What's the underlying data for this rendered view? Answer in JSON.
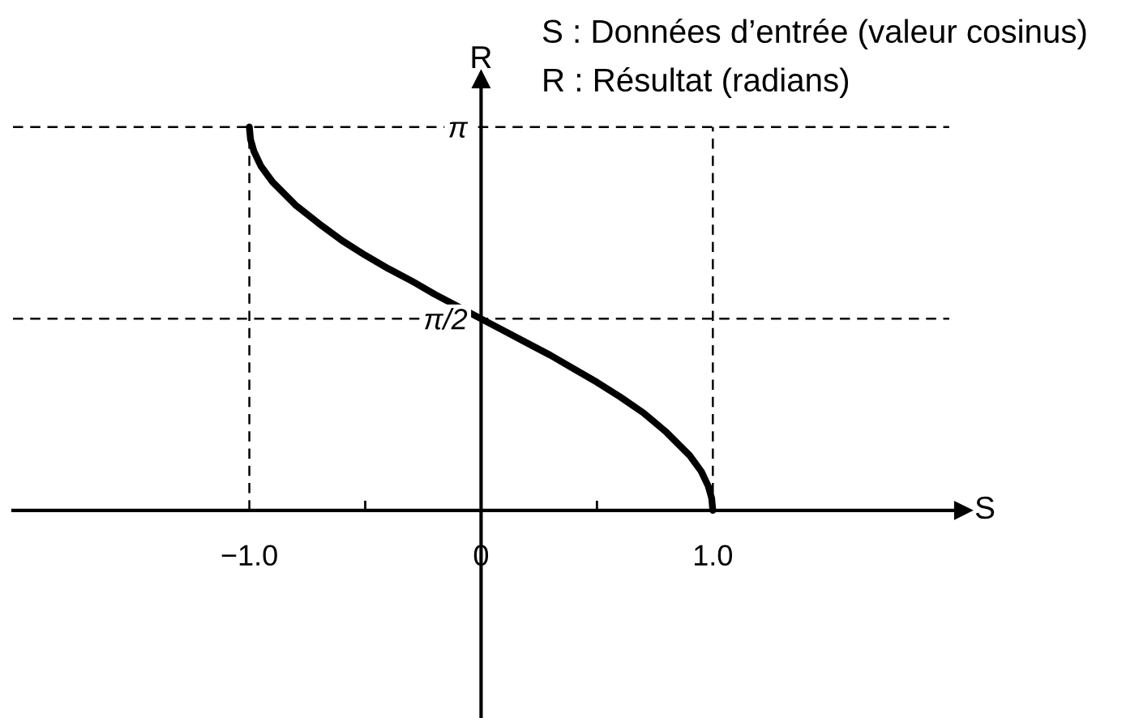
{
  "chart_data": {
    "type": "line",
    "xlabel": "S",
    "ylabel": "R",
    "annotations": [
      "S : Données d’entrée (valeur cosinus)",
      "R : Résultat (radians)"
    ],
    "xlim": [
      -2.02,
      2.08
    ],
    "ylim": [
      -1.7,
      3.53
    ],
    "xticks": [
      {
        "value": -1.0,
        "label": "−1.0"
      },
      {
        "value": -0.5,
        "label": null
      },
      {
        "value": 0,
        "label": "0"
      },
      {
        "value": 0.5,
        "label": null
      },
      {
        "value": 1.0,
        "label": "1.0"
      }
    ],
    "yticks": [
      {
        "value": 1.5708,
        "label": "π/2"
      },
      {
        "value": 3.1416,
        "label": "π"
      }
    ],
    "series": [
      {
        "color": "#000000",
        "line_style": "dashed",
        "x": [
          -2.02,
          2.02
        ],
        "values": [
          3.14,
          3.14
        ]
      },
      {
        "color": "#000000",
        "line_style": "dashed",
        "x": [
          -2.02,
          2.02
        ],
        "values": [
          1.57,
          1.57
        ]
      },
      {
        "color": "#000000",
        "line_style": "dashed",
        "x": [
          -1,
          -1
        ],
        "values": [
          0,
          3.14
        ]
      },
      {
        "color": "#000000",
        "line_style": "dashed",
        "x": [
          1,
          1
        ],
        "values": [
          0,
          3.14
        ]
      },
      {
        "color": "#000000",
        "line_style": "solid",
        "x": [
          -1,
          -0.995,
          -0.98,
          -0.95,
          -0.9,
          -0.8,
          -0.7,
          -0.6,
          -0.5,
          -0.4,
          -0.3,
          -0.2,
          -0.1,
          0,
          0.1,
          0.2,
          0.3,
          0.4,
          0.5,
          0.6,
          0.7,
          0.8,
          0.9,
          0.95,
          0.98,
          0.995,
          1
        ],
        "values": [
          3.14,
          3.04,
          2.94,
          2.82,
          2.69,
          2.5,
          2.35,
          2.21,
          2.09,
          1.98,
          1.88,
          1.77,
          1.67,
          1.57,
          1.47,
          1.37,
          1.27,
          1.16,
          1.05,
          0.93,
          0.8,
          0.64,
          0.45,
          0.32,
          0.2,
          0.1,
          0
        ]
      }
    ]
  }
}
